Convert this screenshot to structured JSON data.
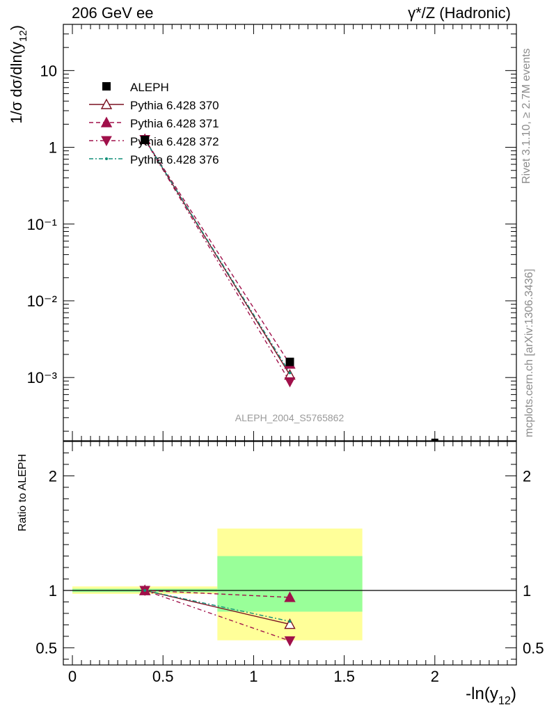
{
  "header": {
    "left": "206 GeV ee",
    "right": "γ*/Z (Hadronic)"
  },
  "side_labels": {
    "rivet": "Rivet 3.1.10, ≥ 2.7M events",
    "mcplots": "mcplots.cern.ch [arXiv:1306.3436]"
  },
  "watermark": "ALEPH_2004_S5765862",
  "chart_data": [
    {
      "type": "line",
      "panel": "main",
      "ylabel": "1/σ  dσ/dln(y12)",
      "yscale": "log",
      "ylim": [
        0.00015,
        40
      ],
      "xlim": [
        -0.05,
        2.45
      ],
      "y_ticks": [
        {
          "value": 10,
          "label": "10"
        },
        {
          "value": 1,
          "label": "1"
        },
        {
          "value": 0.1,
          "label": "10⁻¹"
        },
        {
          "value": 0.01,
          "label": "10⁻²"
        },
        {
          "value": 0.001,
          "label": "10⁻³"
        }
      ],
      "data": {
        "name": "ALEPH",
        "color": "#000000",
        "marker": "square",
        "points": [
          {
            "x": 0.4,
            "y": 1.25
          },
          {
            "x": 1.2,
            "y": 0.0016
          },
          {
            "x": 2.0,
            "y": 0.00013
          }
        ]
      },
      "series": [
        {
          "name": "Pythia 6.428 370",
          "color": "#7a1020",
          "dash": "",
          "marker": "triangle-up-open",
          "x": [
            0.4,
            1.2
          ],
          "y": [
            1.27,
            0.00108
          ]
        },
        {
          "name": "Pythia 6.428 371",
          "color": "#a0104a",
          "dash": "6,4",
          "marker": "triangle-up",
          "x": [
            0.4,
            1.2
          ],
          "y": [
            1.27,
            0.0015
          ]
        },
        {
          "name": "Pythia 6.428 372",
          "color": "#a0104a",
          "dash": "6,4,2,4",
          "marker": "triangle-down",
          "x": [
            0.4,
            1.2
          ],
          "y": [
            1.26,
            0.00088
          ]
        },
        {
          "name": "Pythia 6.428 376",
          "color": "#108f78",
          "dash": "6,3,2,3",
          "marker": "dot",
          "x": [
            0.4,
            1.2
          ],
          "y": [
            1.27,
            0.00115
          ]
        }
      ]
    },
    {
      "type": "line",
      "panel": "ratio",
      "ylabel": "Ratio to ALEPH",
      "xlabel": "-ln(y12)",
      "ylim": [
        0.35,
        2.3
      ],
      "xlim": [
        -0.05,
        2.45
      ],
      "x_ticks": [
        {
          "value": 0,
          "label": "0"
        },
        {
          "value": 0.5,
          "label": "0.5"
        },
        {
          "value": 1,
          "label": "1"
        },
        {
          "value": 1.5,
          "label": "1.5"
        },
        {
          "value": 2,
          "label": "2"
        }
      ],
      "y_ticks": [
        {
          "value": 0.5,
          "label": "0.5"
        },
        {
          "value": 1,
          "label": "1"
        },
        {
          "value": 2,
          "label": "2"
        }
      ],
      "bands": [
        {
          "xmin": 0,
          "xmax": 0.8,
          "stat": [
            0.985,
            1.015
          ],
          "total": [
            0.97,
            1.035
          ]
        },
        {
          "xmin": 0.8,
          "xmax": 1.6,
          "stat": [
            0.815,
            1.3
          ],
          "total": [
            0.565,
            1.54
          ]
        }
      ],
      "band_colors": {
        "stat": "#99ff99",
        "total": "#ffff99"
      },
      "series": [
        {
          "name": "Pythia 6.428 370",
          "x": [
            0.4,
            1.2
          ],
          "y": [
            1.0,
            0.705
          ]
        },
        {
          "name": "Pythia 6.428 371",
          "x": [
            0.4,
            1.2
          ],
          "y": [
            1.0,
            0.94
          ]
        },
        {
          "name": "Pythia 6.428 372",
          "x": [
            0.4,
            1.2
          ],
          "y": [
            1.0,
            0.56
          ]
        },
        {
          "name": "Pythia 6.428 376",
          "x": [
            0.4,
            1.2
          ],
          "y": [
            1.0,
            0.73
          ]
        }
      ]
    }
  ]
}
